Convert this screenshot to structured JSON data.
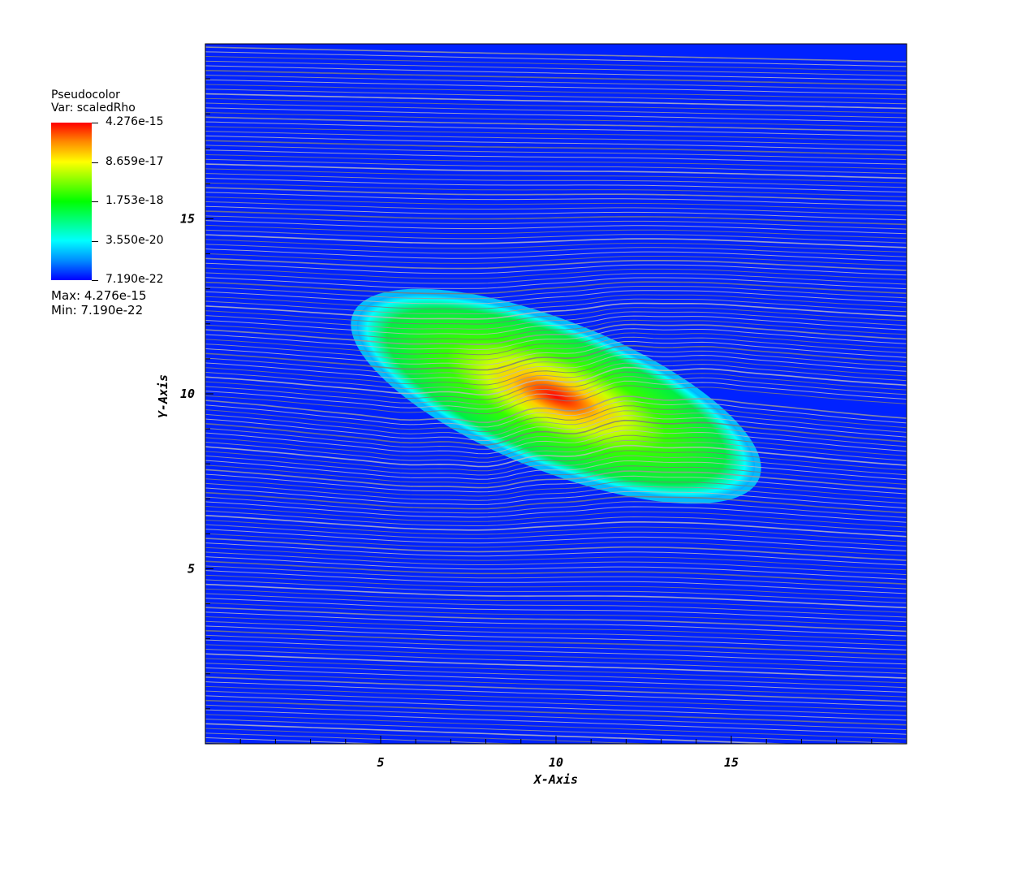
{
  "legend": {
    "title_line1": "Pseudocolor",
    "title_line2": "Var: scaledRho",
    "tick_labels": [
      "4.276e-15",
      "8.659e-17",
      "1.753e-18",
      "3.550e-20",
      "7.190e-22"
    ],
    "max_label": "Max:  4.276e-15",
    "min_label": "Min:  7.190e-22",
    "colors": [
      "#ff0000",
      "#ffff00",
      "#00ff00",
      "#00ffff",
      "#0000ff"
    ]
  },
  "chart_data": {
    "type": "heatmap",
    "description_free": true,
    "xlabel": "X-Axis",
    "ylabel": "Y-Axis",
    "xlim": [
      0,
      20
    ],
    "ylim": [
      0,
      20
    ],
    "x_ticks": [
      5,
      10,
      15
    ],
    "y_ticks": [
      5,
      10,
      15
    ],
    "colorscale": "log",
    "value_range": [
      7.19e-22,
      4.276e-15
    ],
    "background_color": "#0000ff",
    "peak_center": [
      10,
      10
    ],
    "overlay": "streamlines"
  }
}
